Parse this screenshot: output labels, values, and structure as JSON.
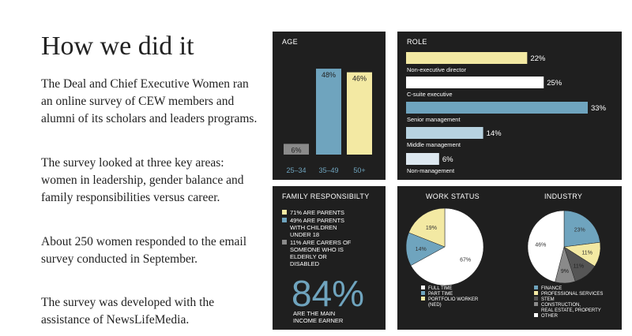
{
  "intro": {
    "heading": "How we did it",
    "paragraphs": [
      "The Deal and Chief Executive Women ran an online survey of CEW members and alumni of its scholars and leaders programs.",
      "The survey looked at three key areas: women in leadership, gender balance and family responsibilities versus career.",
      "About 250 women responded to the email survey conducted in September.",
      "The survey was developed with the assistance of NewsLifeMedia."
    ]
  },
  "colors": {
    "panel": "#1f1f1f",
    "yellow": "#f3e9a3",
    "blue": "#6fa4be",
    "gray": "#8a8a8a",
    "white": "#ffffff",
    "dark": "#555555"
  },
  "chart_data": [
    {
      "id": "age",
      "type": "bar",
      "title": "AGE",
      "categories": [
        "25–34",
        "35–49",
        "50+"
      ],
      "values": [
        6,
        48,
        46
      ],
      "labels": [
        "6%",
        "48%",
        "46%"
      ],
      "colors": [
        "#8a8a8a",
        "#6fa4be",
        "#f3e9a3"
      ],
      "ylim": [
        0,
        52
      ]
    },
    {
      "id": "role",
      "type": "bar",
      "orientation": "horizontal",
      "title": "ROLE",
      "categories": [
        "Non-executive director",
        "C-suite executive",
        "Senior management",
        "Middle management",
        "Non-management"
      ],
      "values": [
        22,
        25,
        33,
        14,
        6
      ],
      "labels": [
        "22%",
        "25%",
        "33%",
        "14%",
        "6%"
      ],
      "colors": [
        "#f3e9a3",
        "#ffffff",
        "#6fa4be",
        "#b7d2e0",
        "#dde8f0"
      ],
      "xlim": [
        0,
        33
      ]
    },
    {
      "id": "family",
      "type": "table",
      "title": "FAMILY RESPONSIBILTY",
      "items": [
        {
          "text": "71% ARE PARENTS",
          "color": "#f3e9a3",
          "lines": [
            "71% ARE PARENTS"
          ]
        },
        {
          "text": "49% ARE PARENTS WITH CHILDREN UNDER 18",
          "color": "#6fa4be",
          "lines": [
            "49% ARE PARENTS",
            "WITH CHILDREN",
            "UNDER 18"
          ]
        },
        {
          "text": "11% ARE CARERS OF SOMEONE WHO IS ELDERLY OR DISABLED",
          "color": "#8a8a8a",
          "lines": [
            "11% ARE CARERS OF",
            "SOMEONE WHO IS",
            "ELDERLY OR",
            "DISABLED"
          ]
        }
      ],
      "big_value": "84%",
      "big_caption_lines": [
        "ARE THE MAIN",
        "INCOME EARNER"
      ]
    },
    {
      "id": "work",
      "type": "pie",
      "title": "WORK STATUS",
      "categories": [
        "FULL TIME",
        "PART TIME",
        "PORTFOLIO WORKER (NED)"
      ],
      "legend_lines": [
        [
          "FULL TIME"
        ],
        [
          "PART TIME"
        ],
        [
          "PORTFOLIO WORKER",
          "(NED)"
        ]
      ],
      "values": [
        67,
        14,
        19
      ],
      "labels": [
        "67%",
        "14%",
        "19%"
      ],
      "colors": [
        "#ffffff",
        "#6fa4be",
        "#f3e9a3"
      ]
    },
    {
      "id": "industry",
      "type": "pie",
      "title": "INDUSTRY",
      "categories": [
        "FINANCE",
        "PROFESSIONAL SERVICES",
        "STEM",
        "CONSTRUCTION, REAL ESTATE, PROPERTY",
        "OTHER"
      ],
      "legend_lines": [
        [
          "FINANCE"
        ],
        [
          "PROFESSIONAL SERVICES"
        ],
        [
          "STEM"
        ],
        [
          "CONSTRUCTION,",
          "REAL ESTATE, PROPERTY"
        ],
        [
          "OTHER"
        ]
      ],
      "values": [
        23,
        11,
        11,
        9,
        46
      ],
      "labels": [
        "23%",
        "11%",
        "11%",
        "9%",
        "46%"
      ],
      "colors": [
        "#6fa4be",
        "#f3e9a3",
        "#555555",
        "#8a8a8a",
        "#ffffff"
      ]
    }
  ]
}
